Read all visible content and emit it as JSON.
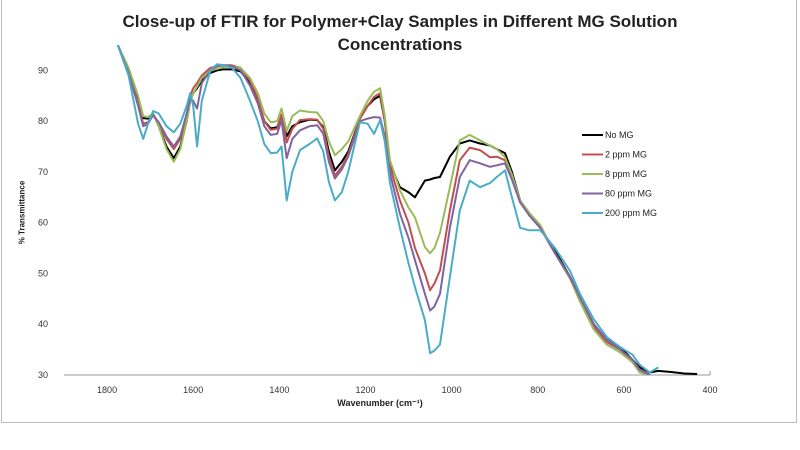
{
  "chart_data": {
    "type": "line",
    "title": [
      "Close-up of FTIR for Polymer+Clay Samples in Different MG Solution",
      "Concentrations"
    ],
    "xlabel": "Wavenumber (cm⁻¹)",
    "ylabel": "% Transmittance",
    "xlim": [
      1900,
      400
    ],
    "x_reversed": true,
    "ylim": [
      30,
      95
    ],
    "xticks": [
      1800,
      1600,
      1400,
      1200,
      1000,
      800,
      600,
      400
    ],
    "yticks": [
      30,
      40,
      50,
      60,
      70,
      80,
      90
    ],
    "grid": false,
    "legend_position": "right",
    "x": [
      1775,
      1750,
      1728,
      1716,
      1705,
      1693,
      1680,
      1662,
      1645,
      1630,
      1615,
      1607,
      1600,
      1591,
      1580,
      1560,
      1545,
      1530,
      1510,
      1490,
      1468,
      1450,
      1435,
      1420,
      1405,
      1395,
      1383,
      1370,
      1352,
      1330,
      1312,
      1298,
      1285,
      1271,
      1255,
      1240,
      1213,
      1195,
      1180,
      1166,
      1155,
      1143,
      1120,
      1100,
      1085,
      1062,
      1050,
      1040,
      1027,
      1004,
      981,
      958,
      934,
      911,
      895,
      876,
      860,
      841,
      820,
      794,
      760,
      725,
      702,
      670,
      640,
      609,
      580,
      563,
      540,
      520,
      490,
      460,
      430
    ],
    "series": [
      {
        "name": "No MG",
        "color": "#000000",
        "values": [
          95,
          90,
          84,
          80.6,
          80.5,
          81.5,
          79,
          75,
          72.7,
          75,
          80,
          84,
          85.5,
          86.5,
          88,
          89.5,
          90,
          90.2,
          90.2,
          89.8,
          87.5,
          84,
          80,
          78.6,
          78.8,
          81,
          77,
          79,
          79.8,
          80.3,
          80.2,
          78.8,
          74,
          70.3,
          72,
          74,
          80.5,
          83,
          84.3,
          85,
          80,
          71.7,
          67,
          66,
          65,
          68.3,
          68.5,
          68.8,
          69,
          73,
          75.6,
          76.2,
          75.6,
          75.2,
          74.5,
          73.7,
          70,
          64.4,
          61.5,
          59,
          54.5,
          49.3,
          45.3,
          40,
          37,
          35.5,
          33,
          31.5,
          30.5,
          30.8,
          30.6,
          30.3,
          30.2
        ]
      },
      {
        "name": "2 ppm MG",
        "color": "#c0504d",
        "values": [
          95,
          90,
          83.5,
          79.5,
          79.8,
          81.3,
          79.5,
          76.5,
          74.5,
          76.5,
          81,
          85,
          86.5,
          87.5,
          89,
          90.5,
          90.8,
          91,
          91,
          90.5,
          88,
          84.5,
          80,
          78.3,
          78.5,
          81.3,
          75.8,
          78.5,
          80.2,
          80.4,
          80.3,
          78.5,
          73,
          69.3,
          71,
          73.5,
          80.5,
          83,
          84.8,
          85.5,
          80,
          71,
          64.4,
          60,
          55,
          50,
          46.7,
          48,
          50.6,
          62.4,
          72.3,
          74.8,
          74.3,
          72.9,
          73,
          72.3,
          69,
          64.4,
          61.5,
          59,
          54,
          49,
          45,
          39.5,
          36.5,
          35,
          33,
          31,
          30,
          null,
          null,
          null,
          null
        ]
      },
      {
        "name": "8 ppm MG",
        "color": "#9bbb59",
        "values": [
          95,
          90.5,
          85,
          81,
          80.8,
          81.5,
          79,
          74.5,
          72,
          74.5,
          80,
          84,
          85.5,
          86.8,
          88.5,
          90,
          90.3,
          90.6,
          90.8,
          90.5,
          88.5,
          85.5,
          81.5,
          79.8,
          80,
          82.5,
          78,
          81,
          82.1,
          81.8,
          81.7,
          80,
          76,
          73.3,
          74.5,
          76,
          81,
          84,
          85.8,
          86.5,
          81,
          72.3,
          66.4,
          63,
          61,
          55.2,
          54,
          55,
          58,
          67,
          76.2,
          77.3,
          76.2,
          75.2,
          74.5,
          72.9,
          69.5,
          64.4,
          62,
          59.5,
          54,
          49,
          44.5,
          39,
          36,
          34.5,
          32.5,
          30.5,
          30,
          null,
          null,
          null,
          null
        ]
      },
      {
        "name": "80 ppm MG",
        "color": "#8064a2",
        "values": [
          95,
          89.5,
          83,
          79,
          79.5,
          81.2,
          79.8,
          77,
          75,
          77,
          81.5,
          84.5,
          84,
          82.5,
          87.5,
          90,
          90.8,
          91,
          90.8,
          90,
          87,
          83.5,
          79,
          77.3,
          77.5,
          80.2,
          72.7,
          76.5,
          78.2,
          79,
          79.2,
          77.5,
          72,
          68.7,
          70.5,
          73,
          80,
          80.5,
          80.8,
          80.7,
          77,
          69.7,
          61.8,
          57,
          52.6,
          46,
          42.7,
          43.5,
          46,
          59,
          69,
          72.3,
          71.7,
          71,
          71.3,
          71.7,
          68.5,
          64,
          61.5,
          59,
          54,
          49.3,
          45.3,
          40,
          37,
          35,
          33,
          31,
          30,
          null,
          null,
          null,
          null
        ]
      },
      {
        "name": "200 ppm MG",
        "color": "#4bacc6",
        "values": [
          95,
          89,
          79.5,
          76.5,
          79.5,
          82,
          81.5,
          79,
          77.8,
          79.5,
          83,
          85.5,
          83,
          75,
          84,
          90,
          91.2,
          91,
          90.5,
          88.5,
          84,
          80,
          75.5,
          73.7,
          73.8,
          75,
          64.4,
          70,
          74.3,
          75.5,
          76.6,
          74,
          68,
          64.4,
          66,
          70,
          79.8,
          79.5,
          77.5,
          80.2,
          76,
          67.8,
          59,
          52,
          47.3,
          40.8,
          34.3,
          34.8,
          36,
          49.3,
          62.4,
          68.3,
          67,
          67.8,
          69,
          70.3,
          65,
          59,
          58.5,
          58.5,
          55,
          50.5,
          46,
          41,
          37.5,
          35.5,
          34,
          32,
          30.5,
          31.5,
          null,
          null,
          null
        ]
      }
    ]
  }
}
